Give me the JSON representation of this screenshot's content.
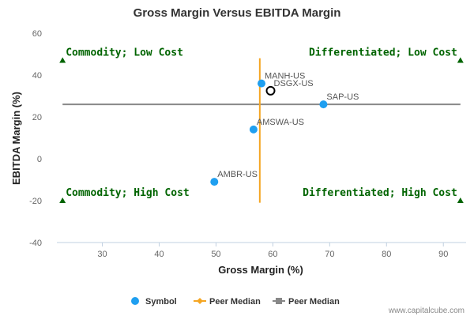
{
  "chart_data": {
    "type": "scatter",
    "title": "Gross Margin Versus EBITDA Margin",
    "xlabel": "Gross Margin (%)",
    "ylabel": "EBITDA Margin (%)",
    "xlim": [
      22,
      94
    ],
    "ylim": [
      -40,
      60
    ],
    "x_ticks": [
      30,
      40,
      50,
      60,
      70,
      80,
      90
    ],
    "y_ticks": [
      -40,
      -20,
      0,
      20,
      40,
      60
    ],
    "grid": false,
    "legend_position": "bottom",
    "points": [
      {
        "label": "MANH-US",
        "x": 58.0,
        "y": 36.0,
        "color": "#1f9ff0",
        "hollow": false
      },
      {
        "label": "DSGX-US",
        "x": 59.6,
        "y": 32.5,
        "color": "#000000",
        "hollow": true
      },
      {
        "label": "SAP-US",
        "x": 68.9,
        "y": 26.0,
        "color": "#1f9ff0",
        "hollow": false
      },
      {
        "label": "AMSWA-US",
        "x": 56.6,
        "y": 14.0,
        "color": "#1f9ff0",
        "hollow": false
      },
      {
        "label": "AMBR-US",
        "x": 49.7,
        "y": -11.0,
        "color": "#1f9ff0",
        "hollow": false
      }
    ],
    "peer_median": {
      "x": 57.7,
      "y": 26.0,
      "x_line_range": [
        -21,
        48
      ],
      "y_line_range": [
        23,
        93
      ],
      "x_line_color": "#f5a623",
      "y_line_color": "#888888"
    },
    "quadrants": [
      {
        "label": "Commodity; Low Cost",
        "x": 23,
        "y": 47
      },
      {
        "label": "Differentiated; Low Cost",
        "x": 93,
        "y": 47
      },
      {
        "label": "Commodity; High Cost",
        "x": 23,
        "y": -20
      },
      {
        "label": "Differentiated; High Cost",
        "x": 93,
        "y": -20
      }
    ],
    "quadrant_color": "#006400",
    "legend": [
      {
        "label": "Symbol",
        "marker": "circle",
        "color": "#1f9ff0"
      },
      {
        "label": "Peer Median",
        "marker": "diamond-line",
        "color": "#f5a623"
      },
      {
        "label": "Peer Median",
        "marker": "square-line",
        "color": "#888888"
      }
    ]
  },
  "credit": "www.capitalcube.com"
}
